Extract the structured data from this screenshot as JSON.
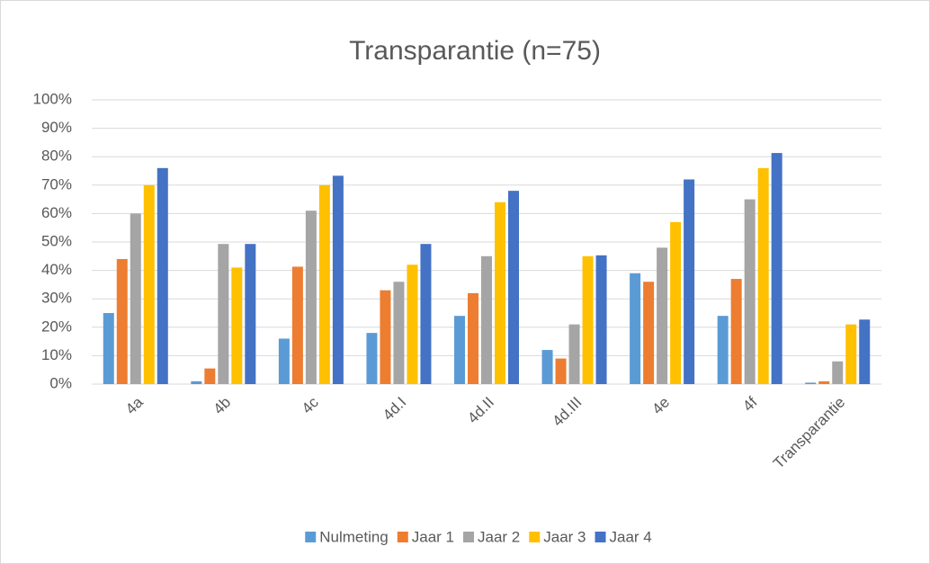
{
  "chart_data": {
    "type": "bar",
    "title": "Transparantie (n=75)",
    "categories": [
      "4a",
      "4b",
      "4c",
      "4d.I",
      "4d.II",
      "4d.III",
      "4e",
      "4f",
      "Transparantie"
    ],
    "series": [
      {
        "name": "Nulmeting",
        "color": "#5B9BD5",
        "values": [
          25,
          1,
          16,
          18,
          24,
          12,
          39,
          24,
          0.5
        ]
      },
      {
        "name": "Jaar 1",
        "color": "#ED7D31",
        "values": [
          44,
          5.5,
          41.3,
          33,
          32,
          9,
          36,
          37,
          1
        ]
      },
      {
        "name": "Jaar 2",
        "color": "#A5A5A5",
        "values": [
          60,
          49.3,
          61,
          36,
          45,
          21,
          48,
          65,
          8
        ]
      },
      {
        "name": "Jaar 3",
        "color": "#FFC000",
        "values": [
          70,
          41,
          70,
          42,
          64,
          45,
          57,
          76,
          21
        ]
      },
      {
        "name": "Jaar 4",
        "color": "#4472C4",
        "values": [
          76,
          49.3,
          73.3,
          49.3,
          68,
          45.3,
          72,
          81.3,
          22.7
        ]
      }
    ],
    "ylim": [
      0,
      100
    ],
    "yticks": [
      {
        "value": 0,
        "label": "0%"
      },
      {
        "value": 10,
        "label": "10%"
      },
      {
        "value": 20,
        "label": "20%"
      },
      {
        "value": 30,
        "label": "30%"
      },
      {
        "value": 40,
        "label": "40%"
      },
      {
        "value": 50,
        "label": "50%"
      },
      {
        "value": 60,
        "label": "60%"
      },
      {
        "value": 70,
        "label": "70%"
      },
      {
        "value": 80,
        "label": "80%"
      },
      {
        "value": 90,
        "label": "90%"
      },
      {
        "value": 100,
        "label": "100%"
      }
    ],
    "grid": true,
    "legend": "bottom"
  }
}
